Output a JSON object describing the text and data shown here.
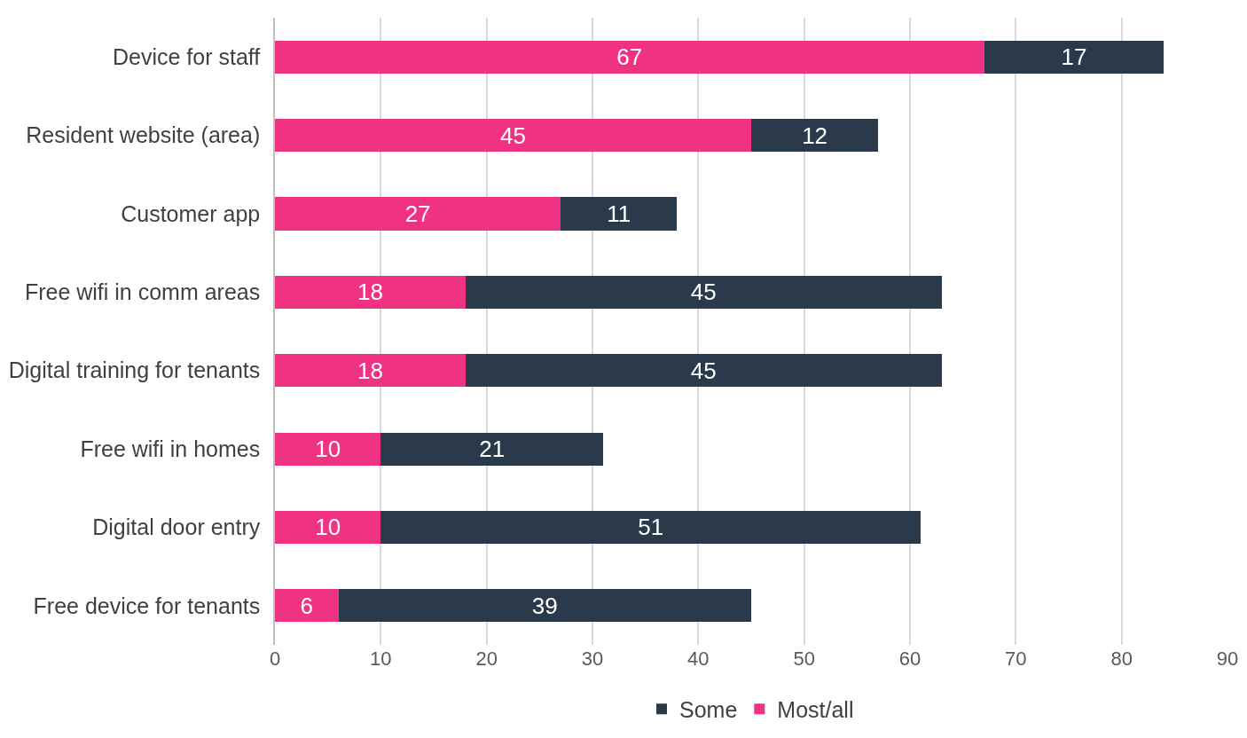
{
  "chart_data": {
    "type": "bar",
    "orientation": "horizontal",
    "stacked": true,
    "categories": [
      "Device for staff",
      "Resident website (area)",
      "Customer app",
      "Free wifi in comm areas",
      "Digital training for tenants",
      "Free wifi in homes",
      "Digital door entry",
      "Free device for tenants"
    ],
    "series": [
      {
        "name": "Most/all",
        "color": "#f03282",
        "values": [
          67,
          45,
          27,
          18,
          18,
          10,
          10,
          6
        ]
      },
      {
        "name": "Some",
        "color": "#2b3a4b",
        "values": [
          17,
          12,
          11,
          45,
          45,
          21,
          51,
          39
        ]
      }
    ],
    "xlim": [
      0,
      90
    ],
    "xticks": [
      0,
      10,
      20,
      30,
      40,
      50,
      60,
      70,
      80,
      90
    ],
    "grid": "x",
    "legend": "bottom",
    "data_labels": true
  }
}
